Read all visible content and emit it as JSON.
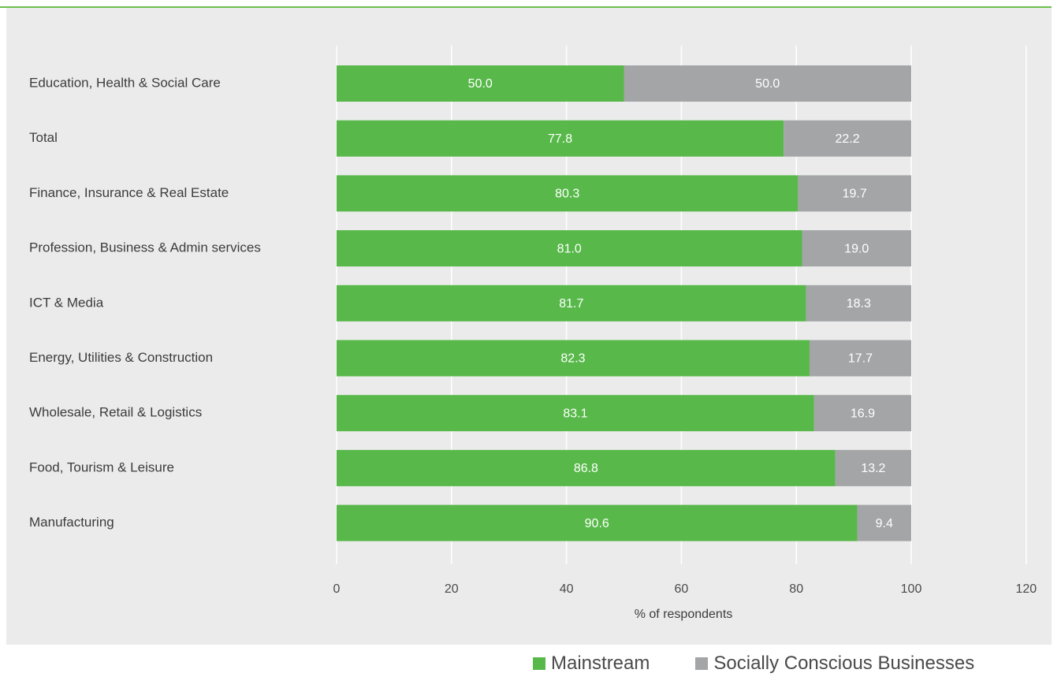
{
  "chart_data": {
    "type": "bar",
    "orientation": "horizontal",
    "stacked": true,
    "categories": [
      "Education, Health & Social Care",
      "Total",
      "Finance, Insurance & Real Estate",
      "Profession, Business & Admin services",
      "ICT & Media",
      "Energy, Utilities & Construction",
      "Wholesale, Retail & Logistics",
      "Food, Tourism & Leisure",
      "Manufacturing"
    ],
    "series": [
      {
        "name": "Mainstream",
        "color": "#58b94a",
        "values": [
          50.0,
          77.8,
          80.3,
          81.0,
          81.7,
          82.3,
          83.1,
          86.8,
          90.6
        ],
        "labels": [
          "50.0",
          "77.8",
          "80.3",
          "81.0",
          "81.7",
          "82.3",
          "83.1",
          "86.8",
          "90.6"
        ]
      },
      {
        "name": "Socially Conscious Businesses",
        "color": "#a3a5a7",
        "values": [
          50.0,
          22.2,
          19.7,
          19.0,
          18.3,
          17.7,
          16.9,
          13.2,
          9.4
        ],
        "labels": [
          "50.0",
          "22.2",
          "19.7",
          "19.0",
          "18.3",
          "17.7",
          "16.9",
          "13.2",
          "9.4"
        ]
      }
    ],
    "xlim": [
      0,
      120
    ],
    "xticks": [
      "0",
      "20",
      "40",
      "60",
      "80",
      "100",
      "120"
    ],
    "xlabel": "% of respondents",
    "ylabel": "",
    "title": "",
    "grid": "vertical",
    "legend_position": "bottom-right"
  },
  "colors": {
    "background": "#ebebeb",
    "accent_rule": "#6cbf4a",
    "gridline": "#ffffff"
  }
}
